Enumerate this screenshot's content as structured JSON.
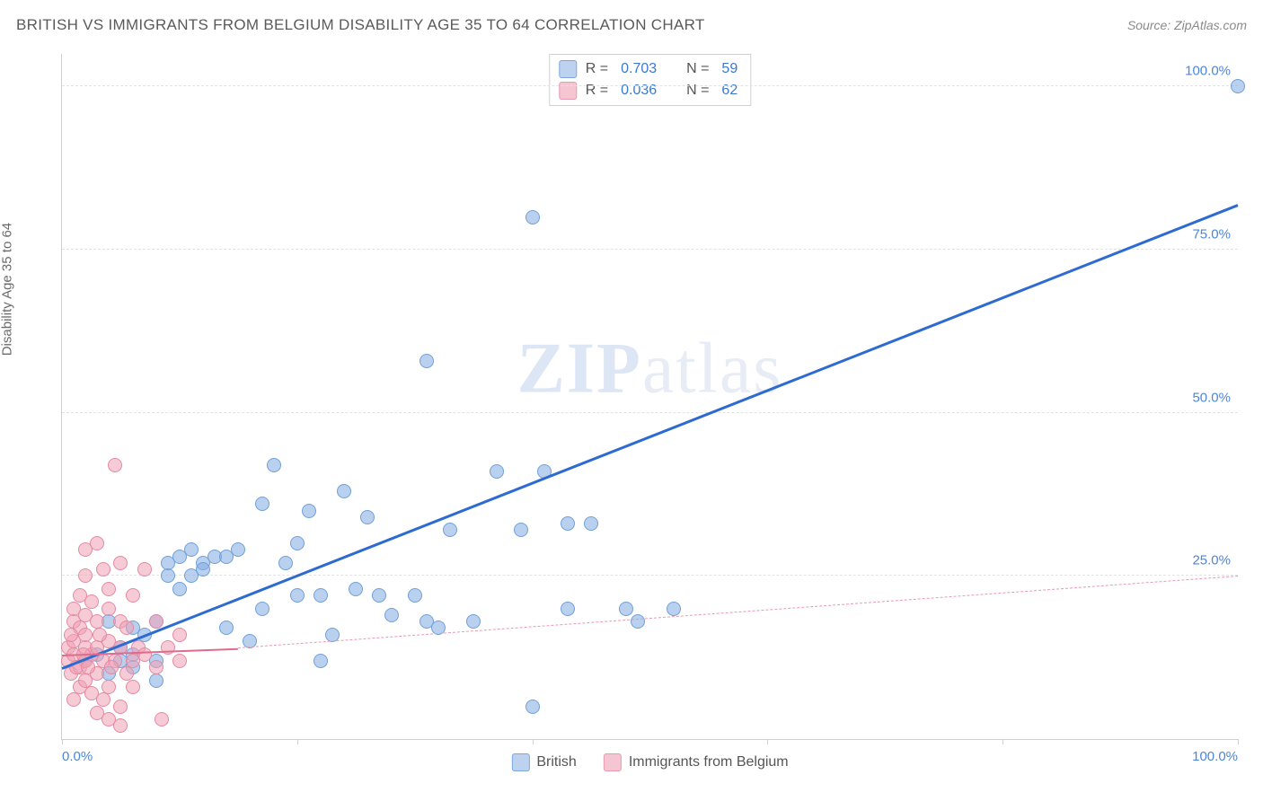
{
  "title": "BRITISH VS IMMIGRANTS FROM BELGIUM DISABILITY AGE 35 TO 64 CORRELATION CHART",
  "source_label": "Source: ",
  "source_name": "ZipAtlas.com",
  "ylabel": "Disability Age 35 to 64",
  "watermark": {
    "bold": "ZIP",
    "rest": "atlas"
  },
  "chart": {
    "type": "scatter",
    "background_color": "#ffffff",
    "grid_color": "#e2e2e2",
    "axis_color": "#cfcfcf",
    "xlim": [
      0,
      100
    ],
    "ylim": [
      0,
      105
    ],
    "xtick_positions": [
      0,
      20,
      40,
      60,
      80,
      100
    ],
    "xtick_labels_visible": {
      "0": "0.0%",
      "100": "100.0%"
    },
    "ytick_positions": [
      25,
      50,
      75,
      100
    ],
    "ytick_labels": {
      "25": "25.0%",
      "50": "50.0%",
      "75": "75.0%",
      "100": "100.0%"
    },
    "tick_label_color": "#4d86d8",
    "tick_label_fontsize": 15,
    "series": [
      {
        "key": "british",
        "label": "British",
        "color_fill": "rgba(130,170,225,0.55)",
        "color_stroke": "#6fa0d8",
        "swatch_fill": "#bcd2ef",
        "swatch_border": "#7ba7dd",
        "marker_radius": 8,
        "trend": {
          "x1": 0,
          "y1": 11,
          "x2": 100,
          "y2": 82,
          "color": "#2e6bd0",
          "width": 3,
          "dash": "solid"
        },
        "trend_ext": null,
        "R": "0.703",
        "N": "59",
        "points": [
          [
            2,
            12
          ],
          [
            100,
            100
          ],
          [
            40,
            80
          ],
          [
            31,
            58
          ],
          [
            3,
            13
          ],
          [
            4,
            10
          ],
          [
            5,
            12
          ],
          [
            5,
            14
          ],
          [
            6,
            11
          ],
          [
            6,
            13
          ],
          [
            7,
            16
          ],
          [
            8,
            12
          ],
          [
            8,
            18
          ],
          [
            9,
            27
          ],
          [
            9,
            25
          ],
          [
            10,
            28
          ],
          [
            10,
            23
          ],
          [
            11,
            29
          ],
          [
            11,
            25
          ],
          [
            12,
            27
          ],
          [
            12,
            26
          ],
          [
            13,
            28
          ],
          [
            14,
            28
          ],
          [
            14,
            17
          ],
          [
            15,
            29
          ],
          [
            16,
            15
          ],
          [
            17,
            20
          ],
          [
            17,
            36
          ],
          [
            18,
            42
          ],
          [
            19,
            27
          ],
          [
            20,
            30
          ],
          [
            20,
            22
          ],
          [
            21,
            35
          ],
          [
            22,
            22
          ],
          [
            22,
            12
          ],
          [
            23,
            16
          ],
          [
            24,
            38
          ],
          [
            25,
            23
          ],
          [
            26,
            34
          ],
          [
            27,
            22
          ],
          [
            28,
            19
          ],
          [
            30,
            22
          ],
          [
            31,
            18
          ],
          [
            32,
            17
          ],
          [
            33,
            32
          ],
          [
            35,
            18
          ],
          [
            37,
            41
          ],
          [
            39,
            32
          ],
          [
            40,
            5
          ],
          [
            41,
            41
          ],
          [
            43,
            33
          ],
          [
            43,
            20
          ],
          [
            45,
            33
          ],
          [
            48,
            20
          ],
          [
            49,
            18
          ],
          [
            52,
            20
          ],
          [
            8,
            9
          ],
          [
            6,
            17
          ],
          [
            4,
            18
          ]
        ]
      },
      {
        "key": "belgium",
        "label": "Immigrants from Belgium",
        "color_fill": "rgba(240,160,180,0.55)",
        "color_stroke": "#e28aa2",
        "swatch_fill": "#f5c5d2",
        "swatch_border": "#e89ab0",
        "marker_radius": 8,
        "trend": {
          "x1": 0,
          "y1": 13,
          "x2": 15,
          "y2": 14,
          "color": "#e16b8c",
          "width": 2.5,
          "dash": "solid"
        },
        "trend_ext": {
          "x1": 15,
          "y1": 14,
          "x2": 100,
          "y2": 25,
          "color": "#e89ab0",
          "width": 1,
          "dash": "dashed"
        },
        "R": "0.036",
        "N": "62",
        "points": [
          [
            0.5,
            12
          ],
          [
            0.5,
            14
          ],
          [
            0.8,
            10
          ],
          [
            1,
            13
          ],
          [
            1,
            15
          ],
          [
            1,
            18
          ],
          [
            1,
            20
          ],
          [
            1,
            6
          ],
          [
            1.5,
            8
          ],
          [
            1.5,
            11
          ],
          [
            1.5,
            17
          ],
          [
            1.5,
            22
          ],
          [
            2,
            9
          ],
          [
            2,
            12
          ],
          [
            2,
            14
          ],
          [
            2,
            16
          ],
          [
            2,
            19
          ],
          [
            2,
            25
          ],
          [
            2,
            29
          ],
          [
            2.5,
            7
          ],
          [
            2.5,
            13
          ],
          [
            2.5,
            21
          ],
          [
            3,
            4
          ],
          [
            3,
            10
          ],
          [
            3,
            14
          ],
          [
            3,
            18
          ],
          [
            3,
            30
          ],
          [
            3.5,
            6
          ],
          [
            3.5,
            12
          ],
          [
            3.5,
            26
          ],
          [
            4,
            3
          ],
          [
            4,
            8
          ],
          [
            4,
            15
          ],
          [
            4,
            20
          ],
          [
            4,
            23
          ],
          [
            4.5,
            42
          ],
          [
            4.5,
            12
          ],
          [
            5,
            5
          ],
          [
            5,
            14
          ],
          [
            5,
            18
          ],
          [
            5,
            27
          ],
          [
            5,
            2
          ],
          [
            5.5,
            10
          ],
          [
            5.5,
            17
          ],
          [
            6,
            12
          ],
          [
            6,
            22
          ],
          [
            6,
            8
          ],
          [
            6.5,
            14
          ],
          [
            7,
            13
          ],
          [
            7,
            26
          ],
          [
            8,
            18
          ],
          [
            8,
            11
          ],
          [
            8.5,
            3
          ],
          [
            9,
            14
          ],
          [
            10,
            16
          ],
          [
            10,
            12
          ],
          [
            0.8,
            16
          ],
          [
            1.2,
            11
          ],
          [
            1.8,
            13
          ],
          [
            2.2,
            11
          ],
          [
            3.2,
            16
          ],
          [
            4.2,
            11
          ]
        ]
      }
    ],
    "stats_legend": {
      "r_label": "R =",
      "n_label": "N =",
      "value_color": "#3b78d4"
    },
    "bottom_legend_items": [
      {
        "series": "british"
      },
      {
        "series": "belgium"
      }
    ]
  }
}
